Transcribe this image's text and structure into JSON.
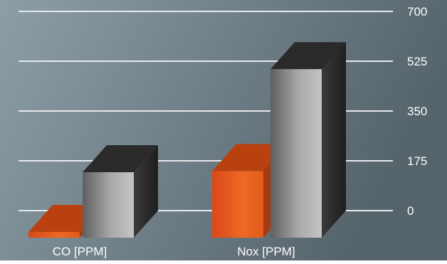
{
  "chart_data": {
    "type": "bar",
    "categories": [
      "CO [PPM]",
      "Nox [PPM]"
    ],
    "series": [
      {
        "values": [
          20,
          234
        ],
        "color": "#e2551a"
      },
      {
        "values": [
          230,
          592
        ],
        "color": "#8a8a8a"
      }
    ],
    "ylim": [
      0,
      700
    ],
    "yticks": [
      "700",
      "525",
      "350",
      "175",
      "0"
    ],
    "tick_values": [
      700,
      525,
      350,
      175,
      0
    ],
    "grid": true,
    "style": "3d",
    "background": [
      "#8a9aa2",
      "#56646c"
    ],
    "gridline_color": "#e6eaec"
  }
}
